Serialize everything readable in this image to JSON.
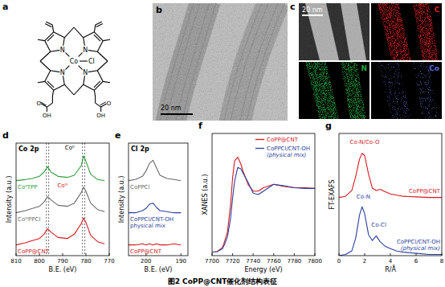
{
  "figure": {
    "caption": "图2 CoPP@CNT催化剂结构表征",
    "panel_a": {
      "label": "a",
      "atoms": {
        "metal": "Co",
        "axial": "Cl",
        "donor": "N",
        "carbonyl": "O",
        "hydroxyl": "OH"
      }
    },
    "panel_b": {
      "label": "b",
      "scale_bar": "20 nm"
    },
    "panel_c": {
      "label": "c",
      "scale_bar": "20 nm",
      "maps": [
        {
          "name": "C",
          "color": "#e0201b"
        },
        {
          "name": "N",
          "color": "#1fa33a"
        },
        {
          "name": "Co",
          "color": "#5a6ad0"
        }
      ]
    }
  },
  "chart_data": [
    {
      "type": "line",
      "panel_label": "d",
      "title": "Co 2p",
      "x_label": "B.E. (eV)",
      "y_label": "Intensity (a.u.)",
      "x": [
        810,
        806,
        803,
        800,
        798,
        796.5,
        795,
        792,
        788,
        785,
        782,
        781,
        780,
        778,
        775,
        772
      ],
      "xlim": [
        810,
        770
      ],
      "xticks": [
        810,
        800,
        790,
        780,
        770
      ],
      "ylim": [
        0,
        10.5
      ],
      "tick_labels": "x",
      "series": [
        {
          "name": "CoᴵᴵTPP",
          "color": "#2e9e3a",
          "values": [
            7.0,
            7.1,
            7.2,
            7.4,
            7.8,
            8.3,
            7.8,
            7.4,
            7.3,
            7.5,
            8.4,
            9.3,
            8.8,
            7.6,
            7.1,
            7.0
          ]
        },
        {
          "name": "CoᴵᴵᴵPPCl",
          "color": "#6b6b6b",
          "values": [
            4.0,
            4.2,
            4.4,
            4.6,
            5.0,
            5.5,
            5.2,
            4.7,
            4.6,
            4.9,
            5.9,
            6.4,
            6.0,
            4.9,
            4.3,
            4.1
          ]
        },
        {
          "name": "CoPP@CNT",
          "color": "#d7191c",
          "values": [
            1.0,
            1.2,
            1.4,
            1.6,
            2.0,
            2.5,
            2.2,
            1.7,
            1.6,
            2.0,
            3.0,
            3.5,
            3.1,
            1.9,
            1.3,
            1.1
          ]
        }
      ],
      "ref_lines": [
        797,
        796,
        781.5,
        780.5
      ],
      "annotations": [
        {
          "text": "Coᴵᴵ",
          "x": 787,
          "y": 9.9,
          "color": "#000000"
        },
        {
          "text": "Coᴵᴵᴵ",
          "x": 790,
          "y": 6.4,
          "color": "#d7191c"
        }
      ]
    },
    {
      "type": "line",
      "panel_label": "e",
      "title": "Cl 2p",
      "x_label": "B.E. (eV)",
      "y_label": "Intensity (a.u.)",
      "x": [
        205,
        203,
        201,
        200,
        199,
        198,
        197,
        196,
        194,
        192,
        190
      ],
      "xlim": [
        205,
        188
      ],
      "xticks": [
        200,
        190
      ],
      "ylim": [
        0,
        10.5
      ],
      "tick_labels": "x",
      "series": [
        {
          "name": "CoPPCl",
          "color": "#6b6b6b",
          "values": [
            7.0,
            7.1,
            7.4,
            7.9,
            8.6,
            8.9,
            8.2,
            7.5,
            7.2,
            7.1,
            7.0
          ]
        },
        {
          "name": "CoPPCl/CNT-OH physical mix",
          "color": "#2b3fa0",
          "values": [
            4.0,
            4.0,
            4.2,
            4.4,
            4.8,
            4.9,
            4.5,
            4.2,
            4.1,
            4.0,
            4.0
          ]
        },
        {
          "name": "CoPP@CNT",
          "color": "#d7191c",
          "values": [
            1.0,
            1.0,
            1.1,
            1.0,
            1.1,
            1.0,
            1.1,
            1.0,
            1.0,
            1.1,
            1.0
          ]
        }
      ]
    },
    {
      "type": "line",
      "panel_label": "f",
      "x_label": "Energy (eV)",
      "y_label": "XANES (a.u.)",
      "x": [
        7700,
        7705,
        7710,
        7712,
        7715,
        7718,
        7720,
        7722,
        7725,
        7728,
        7730,
        7735,
        7740,
        7745,
        7750,
        7760,
        7770,
        7780,
        7790,
        7800
      ],
      "xlim": [
        7700,
        7800
      ],
      "xticks": [
        7700,
        7720,
        7740,
        7760,
        7780,
        7800
      ],
      "ylim": [
        0,
        1.8
      ],
      "tick_labels": "x",
      "legend": "upper right",
      "series": [
        {
          "name": "CoPP@CNT",
          "color": "#d7191c",
          "values": [
            0.05,
            0.06,
            0.12,
            0.2,
            0.35,
            0.75,
            1.15,
            1.4,
            1.45,
            1.35,
            1.25,
            1.05,
            0.95,
            0.95,
            1.0,
            1.05,
            1.02,
            1.0,
            1.0,
            0.99
          ]
        },
        {
          "name": "CoPPCl/CNT-OH (physical mix)",
          "color": "#2b3fa0",
          "values": [
            0.05,
            0.06,
            0.1,
            0.16,
            0.28,
            0.55,
            0.85,
            1.1,
            1.3,
            1.28,
            1.22,
            1.08,
            0.92,
            0.9,
            0.95,
            1.05,
            1.03,
            1.0,
            0.99,
            0.99
          ]
        }
      ]
    },
    {
      "type": "line",
      "panel_label": "g",
      "x_label": "R/Å",
      "y_label": "FT-EXAFS",
      "x": [
        0,
        0.5,
        1.0,
        1.3,
        1.6,
        1.8,
        2.0,
        2.3,
        2.6,
        2.9,
        3.2,
        3.6,
        4.0,
        4.5,
        5,
        6,
        7,
        8
      ],
      "xlim": [
        0,
        8
      ],
      "xticks": [
        0,
        2,
        4,
        6,
        8
      ],
      "ylim": [
        0,
        10.5
      ],
      "tick_labels": "x",
      "series": [
        {
          "name": "CoPP@CNT",
          "color": "#d7191c",
          "values": [
            5.0,
            5.1,
            5.6,
            6.8,
            8.3,
            8.8,
            8.6,
            7.0,
            5.8,
            5.6,
            5.7,
            5.5,
            5.3,
            5.2,
            5.1,
            5.05,
            5.0,
            5.0
          ]
        },
        {
          "name": "CoPPCl/CNT-OH (physical mix)",
          "color": "#2b3fa0",
          "values": [
            0.0,
            0.1,
            0.4,
            1.5,
            3.5,
            4.2,
            3.6,
            1.8,
            1.3,
            1.7,
            1.2,
            0.8,
            0.6,
            0.4,
            0.3,
            0.2,
            0.1,
            0.1
          ]
        }
      ],
      "annotations": [
        {
          "text": "Co-N/Co-O",
          "x": 2.0,
          "y": 9.6,
          "color": "#d7191c"
        },
        {
          "text": "Co-N",
          "x": 1.9,
          "y": 4.9,
          "color": "#2b3fa0"
        },
        {
          "text": "Co-Cl",
          "x": 3.1,
          "y": 2.5,
          "color": "#2b3fa0"
        }
      ]
    }
  ]
}
